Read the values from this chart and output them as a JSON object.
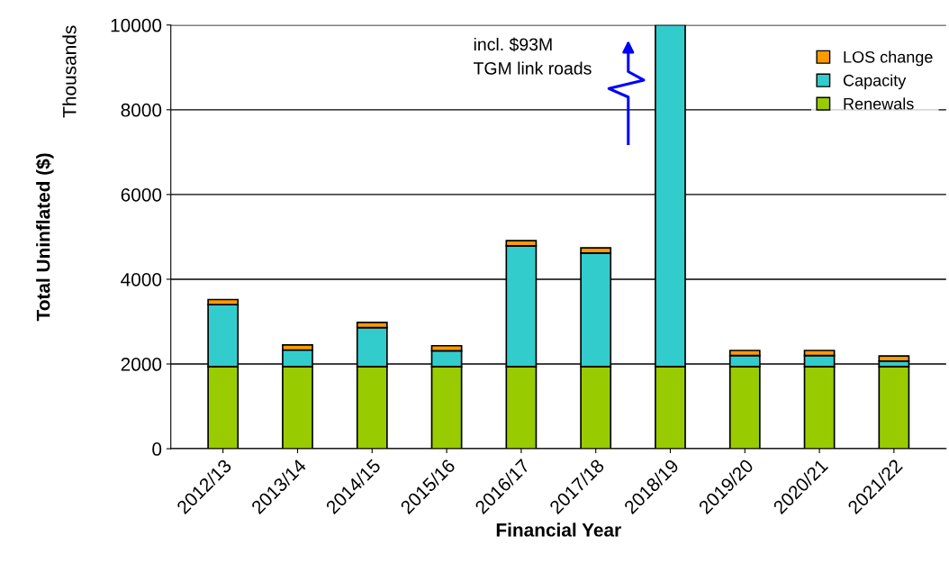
{
  "chart_data": {
    "type": "bar",
    "stacked": true,
    "categories": [
      "2012/13",
      "2013/14",
      "2014/15",
      "2015/16",
      "2016/17",
      "2017/18",
      "2018/19",
      "2019/20",
      "2020/21",
      "2021/22"
    ],
    "series": [
      {
        "name": "Renewals",
        "color": "#99cc00",
        "values": [
          1940,
          1940,
          1940,
          1940,
          1940,
          1940,
          1940,
          1940,
          1940,
          1940
        ]
      },
      {
        "name": "Capacity",
        "color": "#33cccc",
        "values": [
          1460,
          390,
          920,
          370,
          2850,
          2680,
          8060,
          260,
          260,
          130
        ]
      },
      {
        "name": "LOS change",
        "color": "#ff9900",
        "values": [
          120,
          120,
          120,
          120,
          120,
          120,
          null,
          120,
          120,
          120
        ]
      }
    ],
    "xlabel": "Financial Year",
    "ylabel": "Total Uninflated ($)",
    "y2label": "Thousands",
    "ylim": [
      0,
      10000
    ],
    "yticks": [
      0,
      2000,
      4000,
      6000,
      8000,
      10000
    ],
    "grid": "y",
    "legend": "top right",
    "annotations": [
      "incl. $93M\nTGM link roads"
    ]
  }
}
